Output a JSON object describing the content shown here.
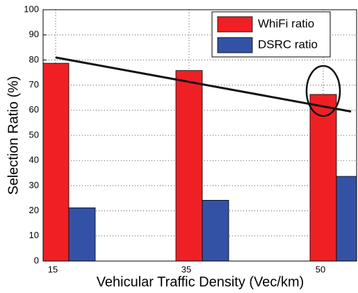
{
  "chart_data": {
    "type": "bar",
    "xlabel": "Vehicular Traffic Density (Vec/km)",
    "ylabel": "Selection Ratio (%)",
    "categories": [
      "15",
      "35",
      "50"
    ],
    "series": [
      {
        "name": "WhiFi ratio",
        "color": "#ee2024",
        "values": [
          78.7,
          75.8,
          66.3
        ]
      },
      {
        "name": "DSRC ratio",
        "color": "#3452a5",
        "values": [
          21.2,
          24.2,
          33.7
        ]
      }
    ],
    "trend_line": [
      81,
      59.5
    ],
    "ylim": [
      0,
      100
    ],
    "yticks": [
      0,
      10,
      20,
      30,
      40,
      50,
      60,
      70,
      80,
      90,
      100
    ],
    "grid": true,
    "legend": "upper right"
  }
}
